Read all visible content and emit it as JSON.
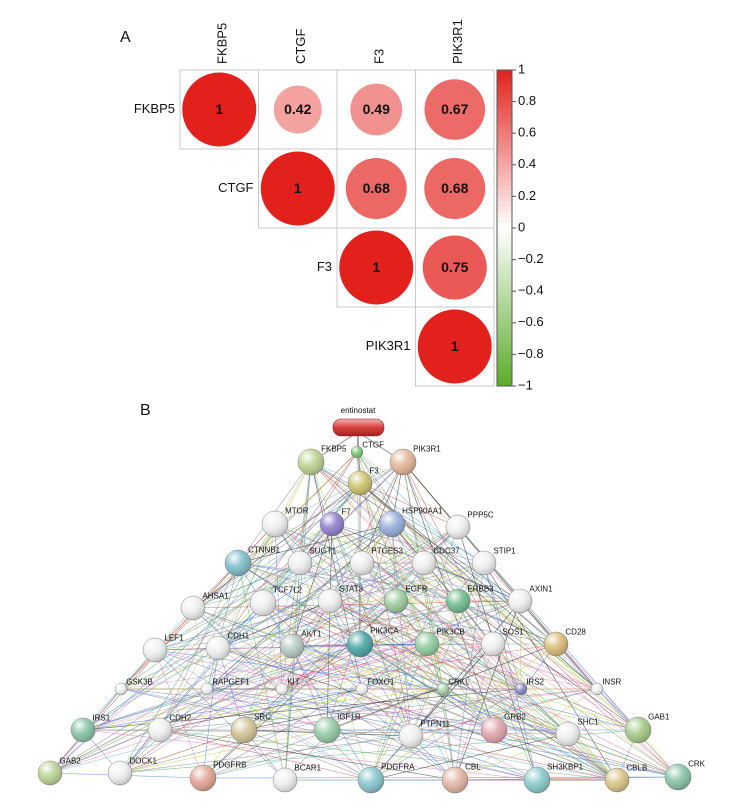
{
  "chart_data": {
    "type": "corrplot",
    "panel_label": "A",
    "variables": [
      "FKBP5",
      "CTGF",
      "F3",
      "PIK3R1"
    ],
    "matrix": [
      [
        1,
        0.42,
        0.49,
        0.67
      ],
      [
        null,
        1,
        0.68,
        0.68
      ],
      [
        null,
        null,
        1,
        0.75
      ],
      [
        null,
        null,
        null,
        1
      ]
    ],
    "colorbar_lim": [
      -1,
      1
    ],
    "colorbar_ticks": [
      1,
      0.8,
      0.6,
      0.4,
      0.2,
      0,
      {
        "value": -0.2,
        "label": "−0.2"
      },
      {
        "value": -0.4,
        "label": "−0.4"
      },
      {
        "value": -0.6,
        "label": "−0.6"
      },
      {
        "value": -0.8,
        "label": "−0.8"
      },
      {
        "value": -1,
        "label": "−1"
      }
    ],
    "colors": {
      "negative": "#5aab2a",
      "zero": "#ffffff",
      "positive": "#e3211c"
    }
  },
  "network": {
    "panel_label": "B",
    "nodes": [
      {
        "label": "entinostat"
      },
      {
        "label": "FKBP5"
      },
      {
        "label": "CTGF"
      },
      {
        "label": "F3"
      },
      {
        "label": "PIK3R1"
      },
      {
        "label": "MTOR"
      },
      {
        "label": "F7"
      },
      {
        "label": "HSP90AA1"
      },
      {
        "label": "PPP5C"
      },
      {
        "label": "CTNNB1"
      },
      {
        "label": "SUGT1"
      },
      {
        "label": "PTGES3"
      },
      {
        "label": "CDC37"
      },
      {
        "label": "STIP1"
      },
      {
        "label": "TCF7L2"
      },
      {
        "label": "STAT3"
      },
      {
        "label": "EGFR"
      },
      {
        "label": "ERBB3"
      },
      {
        "label": "AXIN1"
      },
      {
        "label": "AHSA1"
      },
      {
        "label": "CDH1"
      },
      {
        "label": "AKT1"
      },
      {
        "label": "PIK3CA"
      },
      {
        "label": "PIK3CB"
      },
      {
        "label": "SOS1"
      },
      {
        "label": "CD28"
      },
      {
        "label": "LEF1"
      },
      {
        "label": "GSK3B"
      },
      {
        "label": "RAPGEF1"
      },
      {
        "label": "KIT"
      },
      {
        "label": "FOXO1"
      },
      {
        "label": "CRKL"
      },
      {
        "label": "IRS2"
      },
      {
        "label": "INSR"
      },
      {
        "label": "IRS1"
      },
      {
        "label": "CDH2"
      },
      {
        "label": "SRC"
      },
      {
        "label": "IGF1R"
      },
      {
        "label": "PTPN11"
      },
      {
        "label": "GRB2"
      },
      {
        "label": "SHC1"
      },
      {
        "label": "GAB1"
      },
      {
        "label": "GAB2"
      },
      {
        "label": "DOCK1"
      },
      {
        "label": "PDGFRB"
      },
      {
        "label": "BCAR1"
      },
      {
        "label": "PDGFRA"
      },
      {
        "label": "CBL"
      },
      {
        "label": "SH3KBP1"
      },
      {
        "label": "CBLB"
      },
      {
        "label": "CRK"
      }
    ]
  }
}
